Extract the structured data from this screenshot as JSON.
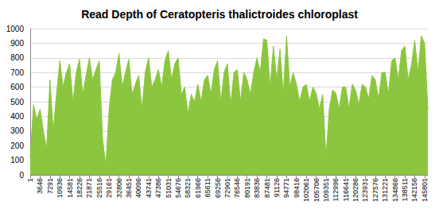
{
  "chart_data": {
    "type": "area",
    "title": "Read Depth of Ceratopteris thalictroides chloroplast",
    "x": [
      1,
      1216,
      2431,
      3646,
      4861,
      6076,
      7291,
      8506,
      9721,
      10936,
      12151,
      13366,
      14581,
      15796,
      17011,
      18226,
      19441,
      20656,
      21871,
      23086,
      24301,
      25516,
      26731,
      27946,
      29161,
      30376,
      31591,
      32806,
      34021,
      35236,
      36451,
      37666,
      38881,
      40096,
      41311,
      42526,
      43741,
      44956,
      46171,
      47386,
      48601,
      49816,
      51031,
      52246,
      53461,
      54676,
      55891,
      57106,
      58321,
      59536,
      60751,
      61966,
      63181,
      64396,
      65611,
      66826,
      68041,
      69256,
      70471,
      71686,
      72901,
      74116,
      75331,
      76546,
      77761,
      78976,
      80191,
      81406,
      82621,
      83836,
      85051,
      86266,
      87481,
      88696,
      89911,
      91126,
      92341,
      93556,
      94771,
      95986,
      97201,
      98416,
      99631,
      100846,
      102061,
      103276,
      104491,
      105706,
      106921,
      108136,
      109351,
      110566,
      111781,
      112996,
      114211,
      115426,
      116641,
      117856,
      119071,
      120286,
      121501,
      122716,
      123931,
      125146,
      126361,
      127576,
      128791,
      130006,
      131221,
      132436,
      133651,
      134866,
      136081,
      137296,
      138511,
      139726,
      140941,
      142156,
      143371,
      144586,
      145801,
      147016
    ],
    "values": [
      120,
      480,
      380,
      450,
      300,
      180,
      650,
      300,
      550,
      780,
      600,
      700,
      760,
      500,
      700,
      790,
      550,
      680,
      800,
      650,
      720,
      780,
      250,
      60,
      450,
      650,
      700,
      830,
      600,
      700,
      790,
      550,
      620,
      680,
      450,
      700,
      800,
      600,
      650,
      720,
      600,
      780,
      850,
      650,
      760,
      800,
      550,
      600,
      420,
      550,
      500,
      620,
      500,
      650,
      680,
      550,
      720,
      780,
      500,
      700,
      760,
      480,
      700,
      720,
      500,
      700,
      650,
      550,
      700,
      800,
      700,
      930,
      920,
      600,
      880,
      650,
      860,
      550,
      950,
      600,
      700,
      620,
      500,
      600,
      620,
      500,
      600,
      560,
      450,
      550,
      120,
      450,
      580,
      560,
      450,
      600,
      600,
      450,
      620,
      580,
      480,
      620,
      600,
      520,
      680,
      650,
      520,
      700,
      700,
      550,
      780,
      800,
      650,
      850,
      880,
      650,
      750,
      920,
      700,
      950,
      900,
      450
    ],
    "color": "#8cc63f",
    "xlim": [
      1,
      147016
    ],
    "xticks": [
      1,
      3646,
      7291,
      10936,
      14581,
      18226,
      21871,
      25516,
      29161,
      32806,
      36451,
      40096,
      43741,
      47386,
      51031,
      54676,
      58321,
      61966,
      65611,
      69256,
      72901,
      76546,
      80191,
      83836,
      87481,
      91126,
      94771,
      98416,
      102061,
      105706,
      109351,
      112996,
      116641,
      120286,
      123931,
      127576,
      131221,
      134866,
      138511,
      142156,
      145801
    ],
    "ylim": [
      0,
      1000
    ],
    "yticks": [
      0,
      100,
      200,
      300,
      400,
      500,
      600,
      700,
      800,
      900,
      1000
    ],
    "grid": true
  }
}
